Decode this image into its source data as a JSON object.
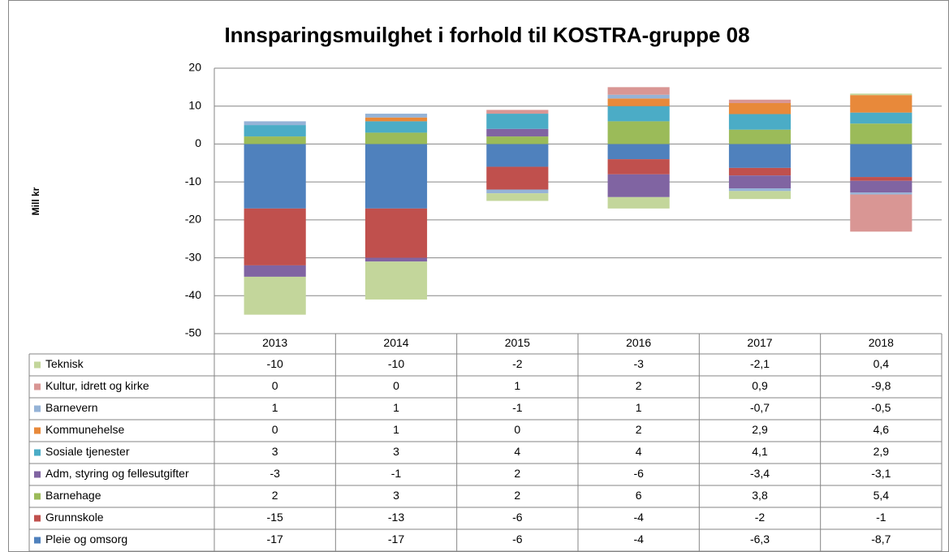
{
  "chart_data": {
    "type": "stacked_bar",
    "title": "Innsparingsmuilghet i forhold til KOSTRA-gruppe 08",
    "y_label": "Mill kr",
    "categories": [
      "2013",
      "2014",
      "2015",
      "2016",
      "2017",
      "2018"
    ],
    "ylim": [
      -50,
      20
    ],
    "yticks": [
      20,
      10,
      0,
      -10,
      -20,
      -30,
      -40,
      -50
    ],
    "grid": true,
    "series": [
      {
        "name": "Teknisk",
        "color": "#c3d69b",
        "values": [
          -10,
          -10,
          -2,
          -3,
          -2.1,
          0.4
        ],
        "value_labels": [
          "-10",
          "-10",
          "-2",
          "-3",
          "-2,1",
          "0,4"
        ]
      },
      {
        "name": "Kultur, idrett og kirke",
        "color": "#d99694",
        "values": [
          0,
          0,
          1,
          2,
          0.9,
          -9.8
        ],
        "value_labels": [
          "0",
          "0",
          "1",
          "2",
          "0,9",
          "-9,8"
        ]
      },
      {
        "name": "Barnevern",
        "color": "#95b3d7",
        "values": [
          1,
          1,
          -1,
          1,
          -0.7,
          -0.5
        ],
        "value_labels": [
          "1",
          "1",
          "-1",
          "1",
          "-0,7",
          "-0,5"
        ]
      },
      {
        "name": "Kommunehelse",
        "color": "#e8893a",
        "values": [
          0,
          1,
          0,
          2,
          2.9,
          4.6
        ],
        "value_labels": [
          "0",
          "1",
          "0",
          "2",
          "2,9",
          "4,6"
        ]
      },
      {
        "name": "Sosiale tjenester",
        "color": "#4bacc6",
        "values": [
          3,
          3,
          4,
          4,
          4.1,
          2.9
        ],
        "value_labels": [
          "3",
          "3",
          "4",
          "4",
          "4,1",
          "2,9"
        ]
      },
      {
        "name": "Adm, styring og fellesutgifter",
        "color": "#8064a2",
        "values": [
          -3,
          -1,
          2,
          -6,
          -3.4,
          -3.1
        ],
        "value_labels": [
          "-3",
          "-1",
          "2",
          "-6",
          "-3,4",
          "-3,1"
        ]
      },
      {
        "name": "Barnehage",
        "color": "#9bbb59",
        "values": [
          2,
          3,
          2,
          6,
          3.8,
          5.4
        ],
        "value_labels": [
          "2",
          "3",
          "2",
          "6",
          "3,8",
          "5,4"
        ]
      },
      {
        "name": "Grunnskole",
        "color": "#c0504d",
        "values": [
          -15,
          -13,
          -6,
          -4,
          -2,
          -1
        ]
      },
      {
        "name": "Pleie og omsorg",
        "color": "#4f81bd",
        "values": [
          -17,
          -17,
          -6,
          -4,
          -6.3,
          -8.7
        ],
        "value_labels": [
          "-17",
          "-17",
          "-6",
          "-4",
          "-6,3",
          "-8,7"
        ]
      }
    ]
  }
}
